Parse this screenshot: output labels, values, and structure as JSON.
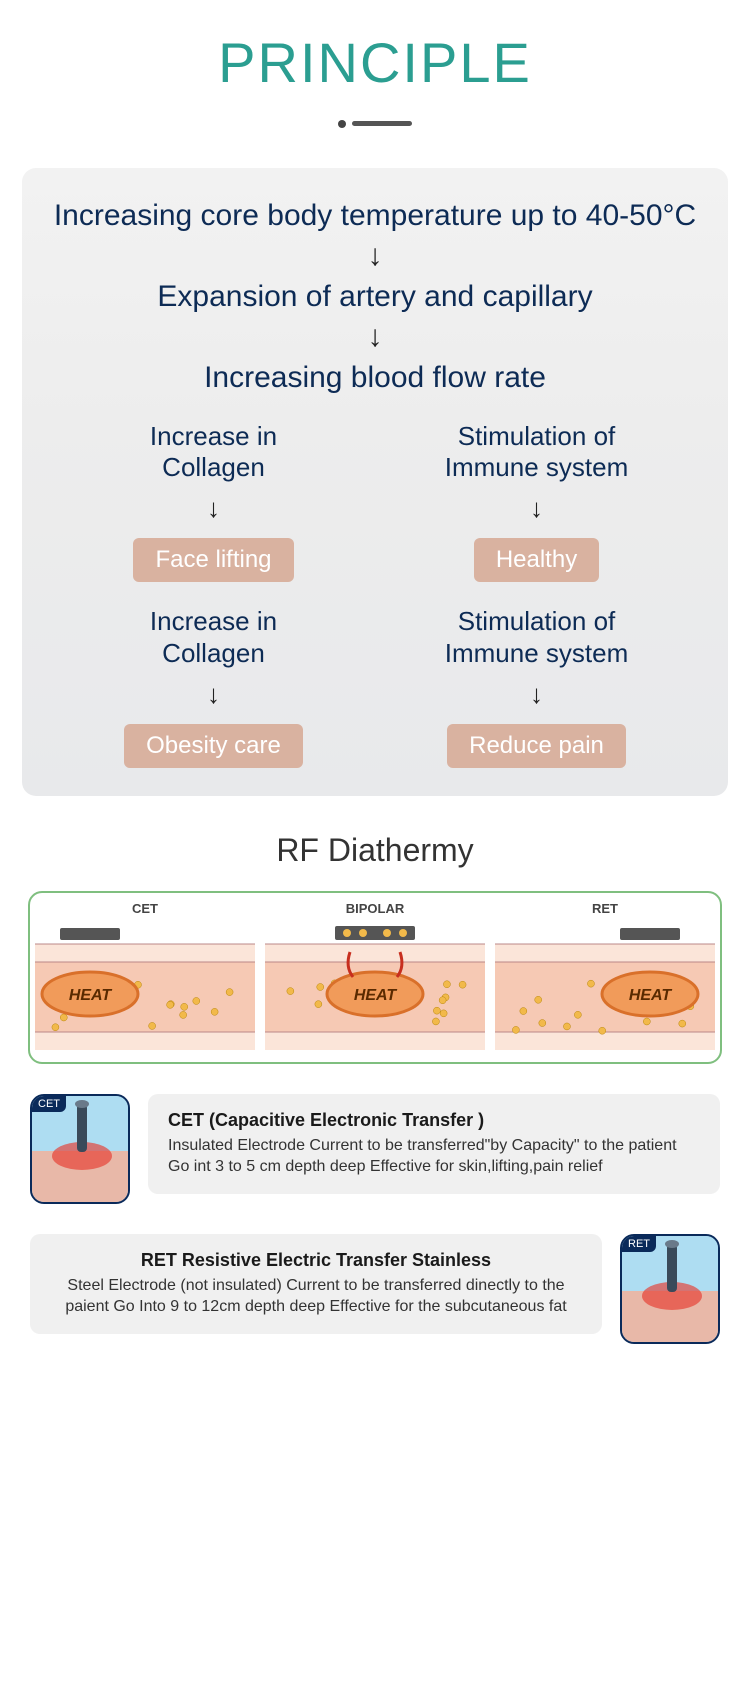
{
  "title": {
    "text": "PRINCIPLE",
    "color": "#2b9e91"
  },
  "flow": {
    "bg_color": "#f2f2f2",
    "text_color": "#0d2b55",
    "steps": [
      "Increasing core body temperature up to 40-50°C",
      "Expansion of artery and capillary",
      "Increasing blood flow rate"
    ],
    "branches": [
      {
        "left": {
          "label": "Increase in\nCollagen",
          "pill": "Face lifting"
        },
        "right": {
          "label": "Stimulation of\nImmune system",
          "pill": "Healthy"
        }
      },
      {
        "left": {
          "label": "Increase in\nCollagen",
          "pill": "Obesity care"
        },
        "right": {
          "label": "Stimulation of\nImmune system",
          "pill": "Reduce pain"
        }
      }
    ],
    "pill_bg": "#d9b2a0",
    "pill_text": "#ffffff"
  },
  "rf": {
    "title": "RF Diathermy",
    "cells": [
      {
        "label": "CET",
        "type": "cet"
      },
      {
        "label": "BIPOLAR",
        "type": "bipolar"
      },
      {
        "label": "RET",
        "type": "ret"
      }
    ],
    "colors": {
      "skin_top": "#fbe5d9",
      "skin_mid": "#f6c9b4",
      "heat_band": "#f19b5a",
      "heat_dark": "#d9702a",
      "particle": "#f2b94a",
      "electrode": "#555555",
      "arrow": "#c72e1e",
      "border": "#7fbf7f"
    }
  },
  "desc": [
    {
      "tag": "CET",
      "title": "CET (Capacitive Electronic Transfer )",
      "text": "Insulated Electrode Current to be transferred\"by Capacity\" to the patient Go int 3 to 5 cm depth deep Effective for skin,lifting,pain relief",
      "side": "left"
    },
    {
      "tag": "RET",
      "title": "RET Resistive Electric Transfer Stainless",
      "text": "Steel Electrode (not insulated) Current to be transferred dinectly to the paient Go Into 9 to 12cm depth deep Effective for the subcutaneous fat",
      "side": "right"
    }
  ],
  "thumb_colors": {
    "sky": "#aeddf2",
    "tissue": "#e8b8a8",
    "glow": "#e63b2e",
    "probe": "#3a4a5a"
  }
}
